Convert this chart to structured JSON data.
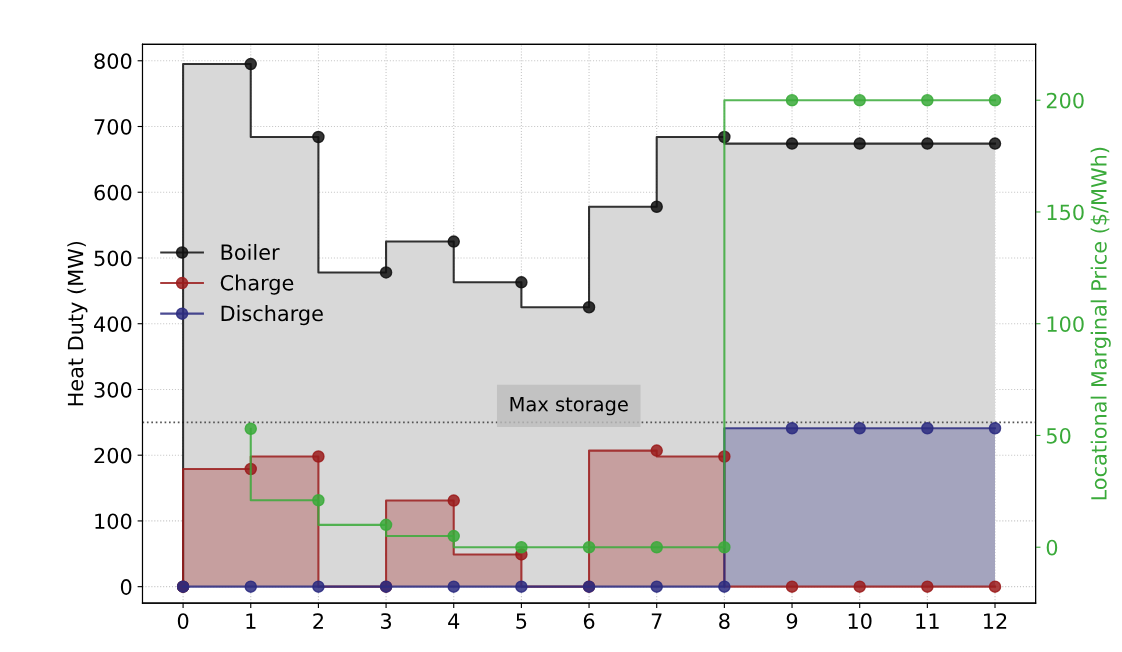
{
  "chart_data": {
    "type": "step",
    "ylabel": "Heat Duty (MW)",
    "y2label": "Locational Marginal Price ($/MWh)",
    "x": [
      0,
      1,
      2,
      3,
      4,
      5,
      6,
      7,
      8,
      9,
      10,
      11,
      12
    ],
    "xlim": [
      -0.6,
      12.6
    ],
    "xticks": [
      0,
      1,
      2,
      3,
      4,
      5,
      6,
      7,
      8,
      9,
      10,
      11,
      12
    ],
    "ylim": [
      -25,
      825
    ],
    "yticks": [
      0,
      100,
      200,
      300,
      400,
      500,
      600,
      700,
      800
    ],
    "y2lim": [
      -25,
      225
    ],
    "y2ticks": [
      0,
      50,
      100,
      150,
      200
    ],
    "series": [
      {
        "name": "Boiler",
        "color": "#111111",
        "values": [
          0,
          795,
          684,
          478,
          525,
          463,
          425,
          578,
          684,
          674,
          674,
          674,
          674
        ]
      },
      {
        "name": "Charge",
        "color": "#9b1c1c",
        "values": [
          0,
          179,
          198,
          0,
          131,
          49,
          0,
          207,
          198,
          0,
          0,
          0,
          0
        ]
      },
      {
        "name": "Discharge",
        "color": "#2b2b80",
        "values": [
          0,
          0,
          0,
          0,
          0,
          0,
          0,
          0,
          0,
          241,
          241,
          241,
          241
        ]
      },
      {
        "axis": "y2",
        "color": "#3aaa3a",
        "x": [
          1,
          2,
          3,
          4,
          5,
          6,
          7,
          8,
          9,
          10,
          11,
          12
        ],
        "values": [
          53,
          21,
          10,
          5,
          0,
          0,
          0,
          0,
          200,
          200,
          200,
          200
        ]
      }
    ],
    "ref_lines": [
      {
        "axis": "y",
        "value": 250,
        "label": "Max storage",
        "color": "#555555",
        "line_style": "dotted"
      }
    ],
    "grid": true,
    "legend": "left",
    "marker": "circle"
  }
}
